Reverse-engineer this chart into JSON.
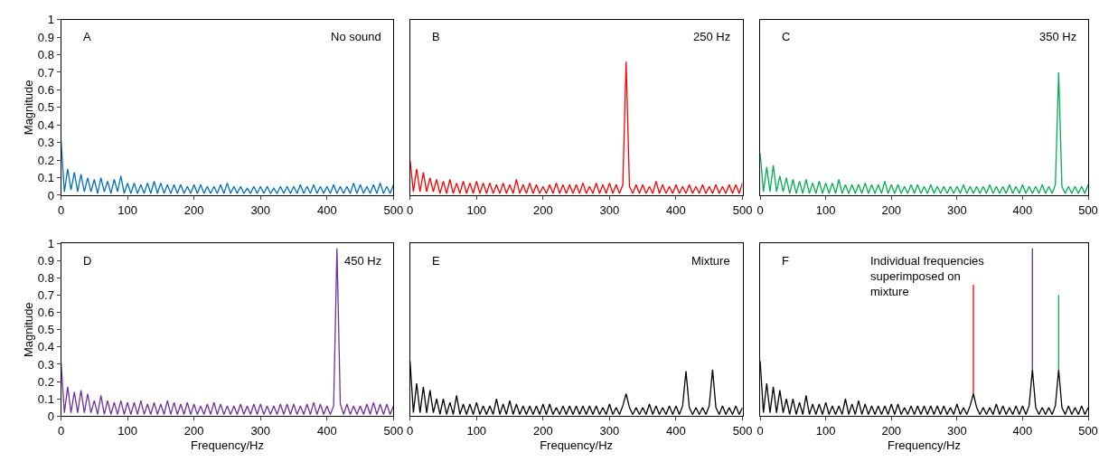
{
  "chart_data": [
    {
      "type": "line",
      "xlim": [
        0,
        500
      ],
      "xticks": [
        0,
        100,
        200,
        300,
        400,
        500
      ],
      "ylim": [
        0,
        1
      ],
      "yticks": [
        0,
        0.1,
        0.2,
        0.3,
        0.4,
        0.5,
        0.6,
        0.7,
        0.8,
        0.9,
        1
      ],
      "ylabel": "Magnitude",
      "annotations": [
        "A",
        "No sound"
      ],
      "x": [
        0,
        5,
        10,
        15,
        20,
        25,
        30,
        35,
        40,
        45,
        50,
        55,
        60,
        65,
        70,
        75,
        80,
        85,
        90,
        95,
        100,
        105,
        110,
        115,
        120,
        125,
        130,
        135,
        140,
        145,
        150,
        155,
        160,
        165,
        170,
        175,
        180,
        185,
        190,
        195,
        200,
        205,
        210,
        215,
        220,
        225,
        230,
        235,
        240,
        245,
        250,
        255,
        260,
        265,
        270,
        275,
        280,
        285,
        290,
        295,
        300,
        305,
        310,
        315,
        320,
        325,
        330,
        335,
        340,
        345,
        350,
        355,
        360,
        365,
        370,
        375,
        380,
        385,
        390,
        395,
        400,
        405,
        410,
        415,
        420,
        425,
        430,
        435,
        440,
        445,
        450,
        455,
        460,
        465,
        470,
        475,
        480,
        485,
        490,
        495,
        500
      ],
      "series": [
        {
          "color": "#0070c0",
          "values": [
            0.31,
            0.02,
            0.15,
            0.03,
            0.13,
            0.02,
            0.12,
            0.02,
            0.1,
            0.02,
            0.09,
            0.01,
            0.1,
            0.02,
            0.08,
            0.01,
            0.09,
            0.02,
            0.11,
            0.01,
            0.07,
            0.01,
            0.07,
            0.01,
            0.06,
            0.01,
            0.07,
            0.01,
            0.08,
            0.01,
            0.07,
            0.01,
            0.06,
            0.01,
            0.06,
            0.01,
            0.06,
            0.01,
            0.05,
            0.01,
            0.06,
            0.01,
            0.06,
            0.01,
            0.05,
            0.01,
            0.05,
            0.01,
            0.06,
            0.01,
            0.07,
            0.01,
            0.05,
            0.01,
            0.05,
            0.01,
            0.04,
            0.01,
            0.05,
            0.01,
            0.05,
            0.01,
            0.05,
            0.01,
            0.04,
            0.01,
            0.05,
            0.01,
            0.05,
            0.01,
            0.05,
            0.01,
            0.06,
            0.01,
            0.05,
            0.01,
            0.06,
            0.01,
            0.05,
            0.01,
            0.05,
            0.01,
            0.06,
            0.01,
            0.05,
            0.01,
            0.05,
            0.01,
            0.07,
            0.01,
            0.06,
            0.01,
            0.05,
            0.01,
            0.06,
            0.01,
            0.07,
            0.01,
            0.05,
            0.01,
            0.06
          ]
        }
      ]
    },
    {
      "type": "line",
      "xlim": [
        0,
        500
      ],
      "xticks": [
        0,
        100,
        200,
        300,
        400,
        500
      ],
      "ylim": [
        0,
        1
      ],
      "tick_labels": "x",
      "annotations": [
        "B",
        "250 Hz"
      ],
      "x": [
        0,
        5,
        10,
        15,
        20,
        25,
        30,
        35,
        40,
        45,
        50,
        55,
        60,
        65,
        70,
        75,
        80,
        85,
        90,
        95,
        100,
        105,
        110,
        115,
        120,
        125,
        130,
        135,
        140,
        145,
        150,
        155,
        160,
        165,
        170,
        175,
        180,
        185,
        190,
        195,
        200,
        205,
        210,
        215,
        220,
        225,
        230,
        235,
        240,
        245,
        250,
        255,
        260,
        265,
        270,
        275,
        280,
        285,
        290,
        295,
        300,
        305,
        310,
        315,
        320,
        325,
        330,
        335,
        340,
        345,
        350,
        355,
        360,
        365,
        370,
        375,
        380,
        385,
        390,
        395,
        400,
        405,
        410,
        415,
        420,
        425,
        430,
        435,
        440,
        445,
        450,
        455,
        460,
        465,
        470,
        475,
        480,
        485,
        490,
        495,
        500
      ],
      "series": [
        {
          "color": "#ff0000",
          "values": [
            0.2,
            0.02,
            0.15,
            0.02,
            0.13,
            0.02,
            0.1,
            0.02,
            0.09,
            0.01,
            0.08,
            0.01,
            0.09,
            0.01,
            0.07,
            0.01,
            0.08,
            0.01,
            0.07,
            0.01,
            0.08,
            0.01,
            0.07,
            0.01,
            0.07,
            0.01,
            0.06,
            0.01,
            0.07,
            0.01,
            0.06,
            0.01,
            0.09,
            0.01,
            0.06,
            0.01,
            0.07,
            0.01,
            0.06,
            0.01,
            0.05,
            0.01,
            0.06,
            0.01,
            0.07,
            0.01,
            0.06,
            0.01,
            0.06,
            0.01,
            0.06,
            0.01,
            0.07,
            0.01,
            0.05,
            0.01,
            0.07,
            0.01,
            0.06,
            0.01,
            0.07,
            0.01,
            0.06,
            0.01,
            0.06,
            0.76,
            0.05,
            0.01,
            0.06,
            0.01,
            0.06,
            0.01,
            0.05,
            0.01,
            0.08,
            0.01,
            0.06,
            0.01,
            0.05,
            0.01,
            0.06,
            0.01,
            0.05,
            0.01,
            0.06,
            0.01,
            0.05,
            0.01,
            0.06,
            0.01,
            0.05,
            0.01,
            0.06,
            0.01,
            0.05,
            0.01,
            0.06,
            0.01,
            0.06,
            0.01,
            0.07
          ]
        }
      ]
    },
    {
      "type": "line",
      "xlim": [
        0,
        500
      ],
      "xticks": [
        0,
        100,
        200,
        300,
        400,
        500
      ],
      "ylim": [
        0,
        1
      ],
      "tick_labels": "x",
      "annotations": [
        "C",
        "350 Hz"
      ],
      "x": [
        0,
        5,
        10,
        15,
        20,
        25,
        30,
        35,
        40,
        45,
        50,
        55,
        60,
        65,
        70,
        75,
        80,
        85,
        90,
        95,
        100,
        105,
        110,
        115,
        120,
        125,
        130,
        135,
        140,
        145,
        150,
        155,
        160,
        165,
        170,
        175,
        180,
        185,
        190,
        195,
        200,
        205,
        210,
        215,
        220,
        225,
        230,
        235,
        240,
        245,
        250,
        255,
        260,
        265,
        270,
        275,
        280,
        285,
        290,
        295,
        300,
        305,
        310,
        315,
        320,
        325,
        330,
        335,
        340,
        345,
        350,
        355,
        360,
        365,
        370,
        375,
        380,
        385,
        390,
        395,
        400,
        405,
        410,
        415,
        420,
        425,
        430,
        435,
        440,
        445,
        450,
        455,
        460,
        465,
        470,
        475,
        480,
        485,
        490,
        495,
        500
      ],
      "series": [
        {
          "color": "#00b050",
          "values": [
            0.24,
            0.02,
            0.16,
            0.02,
            0.17,
            0.02,
            0.11,
            0.02,
            0.1,
            0.01,
            0.09,
            0.01,
            0.08,
            0.01,
            0.09,
            0.01,
            0.07,
            0.01,
            0.08,
            0.01,
            0.07,
            0.01,
            0.07,
            0.01,
            0.09,
            0.01,
            0.06,
            0.01,
            0.06,
            0.01,
            0.06,
            0.01,
            0.07,
            0.01,
            0.06,
            0.01,
            0.06,
            0.01,
            0.08,
            0.01,
            0.06,
            0.01,
            0.06,
            0.01,
            0.05,
            0.01,
            0.06,
            0.01,
            0.06,
            0.01,
            0.05,
            0.01,
            0.06,
            0.01,
            0.05,
            0.01,
            0.05,
            0.01,
            0.05,
            0.01,
            0.05,
            0.01,
            0.06,
            0.01,
            0.05,
            0.01,
            0.05,
            0.01,
            0.05,
            0.01,
            0.06,
            0.01,
            0.05,
            0.01,
            0.05,
            0.01,
            0.06,
            0.01,
            0.05,
            0.01,
            0.06,
            0.01,
            0.05,
            0.01,
            0.05,
            0.01,
            0.06,
            0.01,
            0.05,
            0.01,
            0.06,
            0.7,
            0.05,
            0.01,
            0.05,
            0.01,
            0.05,
            0.01,
            0.05,
            0.01,
            0.06
          ]
        }
      ]
    },
    {
      "type": "line",
      "xlim": [
        0,
        500
      ],
      "xticks": [
        0,
        100,
        200,
        300,
        400,
        500
      ],
      "ylim": [
        0,
        1
      ],
      "yticks": [
        0,
        0.1,
        0.2,
        0.3,
        0.4,
        0.5,
        0.6,
        0.7,
        0.8,
        0.9,
        1
      ],
      "xlabel": "Frequency/Hz",
      "ylabel": "Magnitude",
      "annotations": [
        "D",
        "450 Hz"
      ],
      "x": [
        0,
        5,
        10,
        15,
        20,
        25,
        30,
        35,
        40,
        45,
        50,
        55,
        60,
        65,
        70,
        75,
        80,
        85,
        90,
        95,
        100,
        105,
        110,
        115,
        120,
        125,
        130,
        135,
        140,
        145,
        150,
        155,
        160,
        165,
        170,
        175,
        180,
        185,
        190,
        195,
        200,
        205,
        210,
        215,
        220,
        225,
        230,
        235,
        240,
        245,
        250,
        255,
        260,
        265,
        270,
        275,
        280,
        285,
        290,
        295,
        300,
        305,
        310,
        315,
        320,
        325,
        330,
        335,
        340,
        345,
        350,
        355,
        360,
        365,
        370,
        375,
        380,
        385,
        390,
        395,
        400,
        405,
        410,
        415,
        420,
        425,
        430,
        435,
        440,
        445,
        450,
        455,
        460,
        465,
        470,
        475,
        480,
        485,
        490,
        495,
        500
      ],
      "series": [
        {
          "color": "#7030a0",
          "values": [
            0.31,
            0.02,
            0.17,
            0.02,
            0.14,
            0.02,
            0.15,
            0.02,
            0.13,
            0.02,
            0.09,
            0.01,
            0.12,
            0.01,
            0.09,
            0.01,
            0.08,
            0.01,
            0.09,
            0.01,
            0.08,
            0.01,
            0.08,
            0.01,
            0.09,
            0.01,
            0.07,
            0.01,
            0.08,
            0.01,
            0.07,
            0.01,
            0.09,
            0.01,
            0.08,
            0.01,
            0.07,
            0.01,
            0.08,
            0.01,
            0.07,
            0.01,
            0.06,
            0.01,
            0.07,
            0.01,
            0.08,
            0.01,
            0.07,
            0.01,
            0.06,
            0.01,
            0.06,
            0.01,
            0.07,
            0.01,
            0.06,
            0.01,
            0.07,
            0.01,
            0.07,
            0.01,
            0.06,
            0.01,
            0.06,
            0.01,
            0.07,
            0.01,
            0.07,
            0.01,
            0.07,
            0.01,
            0.06,
            0.01,
            0.07,
            0.01,
            0.08,
            0.01,
            0.07,
            0.01,
            0.06,
            0.01,
            0.06,
            0.97,
            0.07,
            0.01,
            0.07,
            0.01,
            0.06,
            0.01,
            0.06,
            0.01,
            0.07,
            0.01,
            0.08,
            0.01,
            0.07,
            0.01,
            0.07,
            0.01,
            0.06
          ]
        }
      ]
    },
    {
      "type": "line",
      "xlim": [
        0,
        500
      ],
      "xticks": [
        0,
        100,
        200,
        300,
        400,
        500
      ],
      "ylim": [
        0,
        1
      ],
      "tick_labels": "x",
      "xlabel": "Frequency/Hz",
      "annotations": [
        "E",
        "Mixture"
      ],
      "x": [
        0,
        5,
        10,
        15,
        20,
        25,
        30,
        35,
        40,
        45,
        50,
        55,
        60,
        65,
        70,
        75,
        80,
        85,
        90,
        95,
        100,
        105,
        110,
        115,
        120,
        125,
        130,
        135,
        140,
        145,
        150,
        155,
        160,
        165,
        170,
        175,
        180,
        185,
        190,
        195,
        200,
        205,
        210,
        215,
        220,
        225,
        230,
        235,
        240,
        245,
        250,
        255,
        260,
        265,
        270,
        275,
        280,
        285,
        290,
        295,
        300,
        305,
        310,
        315,
        320,
        325,
        330,
        335,
        340,
        345,
        350,
        355,
        360,
        365,
        370,
        375,
        380,
        385,
        390,
        395,
        400,
        405,
        410,
        415,
        420,
        425,
        430,
        435,
        440,
        445,
        450,
        455,
        460,
        465,
        470,
        475,
        480,
        485,
        490,
        495,
        500
      ],
      "series": [
        {
          "color": "#000000",
          "values": [
            0.32,
            0.02,
            0.19,
            0.02,
            0.17,
            0.02,
            0.15,
            0.02,
            0.1,
            0.01,
            0.1,
            0.01,
            0.08,
            0.01,
            0.12,
            0.01,
            0.07,
            0.01,
            0.07,
            0.01,
            0.08,
            0.01,
            0.06,
            0.01,
            0.06,
            0.01,
            0.1,
            0.01,
            0.07,
            0.01,
            0.09,
            0.01,
            0.07,
            0.01,
            0.06,
            0.01,
            0.06,
            0.01,
            0.06,
            0.01,
            0.07,
            0.01,
            0.07,
            0.01,
            0.05,
            0.01,
            0.06,
            0.01,
            0.06,
            0.01,
            0.06,
            0.01,
            0.06,
            0.01,
            0.06,
            0.01,
            0.06,
            0.01,
            0.05,
            0.01,
            0.07,
            0.01,
            0.05,
            0.01,
            0.06,
            0.13,
            0.05,
            0.01,
            0.05,
            0.01,
            0.05,
            0.01,
            0.07,
            0.01,
            0.06,
            0.01,
            0.05,
            0.01,
            0.06,
            0.01,
            0.06,
            0.01,
            0.06,
            0.26,
            0.05,
            0.01,
            0.05,
            0.01,
            0.05,
            0.01,
            0.06,
            0.27,
            0.05,
            0.01,
            0.06,
            0.01,
            0.05,
            0.01,
            0.06,
            0.01,
            0.05
          ]
        }
      ]
    },
    {
      "type": "line",
      "xlim": [
        0,
        500
      ],
      "xticks": [
        0,
        100,
        200,
        300,
        400,
        500
      ],
      "ylim": [
        0,
        1
      ],
      "tick_labels": "x",
      "xlabel": "Frequency/Hz",
      "annotations": [
        "F",
        "Individual frequencies superimposed on mixture"
      ],
      "x": [
        0,
        5,
        10,
        15,
        20,
        25,
        30,
        35,
        40,
        45,
        50,
        55,
        60,
        65,
        70,
        75,
        80,
        85,
        90,
        95,
        100,
        105,
        110,
        115,
        120,
        125,
        130,
        135,
        140,
        145,
        150,
        155,
        160,
        165,
        170,
        175,
        180,
        185,
        190,
        195,
        200,
        205,
        210,
        215,
        220,
        225,
        230,
        235,
        240,
        245,
        250,
        255,
        260,
        265,
        270,
        275,
        280,
        285,
        290,
        295,
        300,
        305,
        310,
        315,
        320,
        325,
        330,
        335,
        340,
        345,
        350,
        355,
        360,
        365,
        370,
        375,
        380,
        385,
        390,
        395,
        400,
        405,
        410,
        415,
        420,
        425,
        430,
        435,
        440,
        445,
        450,
        455,
        460,
        465,
        470,
        475,
        480,
        485,
        490,
        495,
        500
      ],
      "series": [
        {
          "color": "#000000",
          "values": [
            0.32,
            0.02,
            0.19,
            0.02,
            0.17,
            0.02,
            0.15,
            0.02,
            0.1,
            0.01,
            0.1,
            0.01,
            0.08,
            0.01,
            0.12,
            0.01,
            0.07,
            0.01,
            0.07,
            0.01,
            0.08,
            0.01,
            0.06,
            0.01,
            0.06,
            0.01,
            0.1,
            0.01,
            0.07,
            0.01,
            0.09,
            0.01,
            0.07,
            0.01,
            0.06,
            0.01,
            0.06,
            0.01,
            0.06,
            0.01,
            0.07,
            0.01,
            0.07,
            0.01,
            0.05,
            0.01,
            0.06,
            0.01,
            0.06,
            0.01,
            0.06,
            0.01,
            0.06,
            0.01,
            0.06,
            0.01,
            0.06,
            0.01,
            0.05,
            0.01,
            0.07,
            0.01,
            0.05,
            0.01,
            0.06,
            0.13,
            0.05,
            0.01,
            0.05,
            0.01,
            0.05,
            0.01,
            0.07,
            0.01,
            0.06,
            0.01,
            0.05,
            0.01,
            0.06,
            0.01,
            0.06,
            0.01,
            0.06,
            0.27,
            0.05,
            0.01,
            0.05,
            0.01,
            0.05,
            0.01,
            0.06,
            0.27,
            0.05,
            0.01,
            0.06,
            0.01,
            0.05,
            0.01,
            0.06,
            0.01,
            0.05
          ]
        },
        {
          "color": "#ff0000",
          "x": [
            325,
            325
          ],
          "values": [
            0.13,
            0.76
          ]
        },
        {
          "color": "#7030a0",
          "x": [
            415,
            415
          ],
          "values": [
            0.27,
            0.97
          ]
        },
        {
          "color": "#00b050",
          "x": [
            455,
            455
          ],
          "values": [
            0.27,
            0.7
          ]
        }
      ]
    }
  ]
}
